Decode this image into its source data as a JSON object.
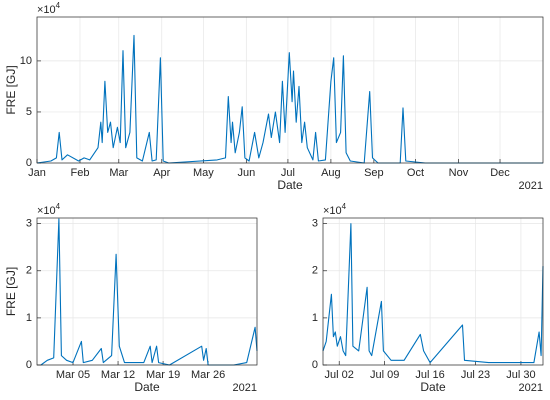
{
  "chart_data": [
    {
      "type": "line",
      "xlabel": "Date",
      "ylabel": "FRE [GJ]",
      "year_label": "2021",
      "y_scale_label": {
        "base": "×10",
        "exponent": "4"
      },
      "xlim": [
        0,
        365
      ],
      "ylim": [
        0,
        14.3
      ],
      "yticks": [
        0,
        5,
        10
      ],
      "grid": true,
      "xticks": [
        {
          "value": 0,
          "label": "Jan"
        },
        {
          "value": 31,
          "label": "Feb"
        },
        {
          "value": 59,
          "label": "Mar"
        },
        {
          "value": 90,
          "label": "Apr"
        },
        {
          "value": 120,
          "label": "May"
        },
        {
          "value": 151,
          "label": "Jun"
        },
        {
          "value": 181,
          "label": "Jul"
        },
        {
          "value": 212,
          "label": "Aug"
        },
        {
          "value": 243,
          "label": "Sep"
        },
        {
          "value": 273,
          "label": "Oct"
        },
        {
          "value": 304,
          "label": "Nov"
        },
        {
          "value": 334,
          "label": "Dec"
        }
      ],
      "x": [
        0,
        10,
        14,
        16,
        18,
        22,
        30,
        34,
        38,
        44,
        46,
        47,
        49,
        51,
        53,
        55,
        58,
        60,
        62,
        64,
        67,
        70,
        72,
        76,
        81,
        83,
        86,
        89,
        91,
        95,
        130,
        136,
        138,
        140,
        141,
        143,
        146,
        148,
        150,
        153,
        157,
        160,
        163,
        167,
        169,
        172,
        175,
        177,
        179,
        182,
        184,
        185,
        187,
        189,
        191,
        193,
        195,
        199,
        201,
        203,
        208,
        212,
        214,
        216,
        219,
        221,
        223,
        226,
        236,
        240,
        242,
        246,
        262,
        264,
        266,
        280,
        365
      ],
      "series": [
        {
          "color": "#0072bd",
          "values": [
            0,
            0.2,
            0.5,
            3,
            0.3,
            0.8,
            0.2,
            0.5,
            0.3,
            1.5,
            4,
            2,
            8,
            3,
            4,
            1.5,
            3.5,
            2,
            11,
            1.5,
            3,
            12.5,
            0.5,
            0.2,
            3,
            0.2,
            0.3,
            10.3,
            0.2,
            0,
            0.3,
            0.5,
            6.5,
            2,
            4,
            1,
            3,
            5.5,
            0.5,
            0.2,
            3,
            0.5,
            2,
            4.8,
            2.5,
            5,
            2,
            8,
            3,
            10.8,
            6,
            9,
            4,
            7.5,
            2,
            4,
            1.5,
            0.3,
            3,
            0.2,
            0.3,
            8,
            10.3,
            2,
            3,
            10.5,
            1,
            0.2,
            0,
            7,
            0.5,
            0,
            0,
            5.4,
            0.2,
            0,
            0
          ]
        }
      ]
    },
    {
      "type": "line",
      "xlabel": "Date",
      "ylabel": "FRE [GJ]",
      "year_label": "2021",
      "y_scale_label": {
        "base": "×10",
        "exponent": "4"
      },
      "xlim": [
        -0.6,
        33.6
      ],
      "ylim": [
        0,
        3.12
      ],
      "yticks": [
        0,
        1,
        2,
        3
      ],
      "grid": true,
      "xticks": [
        {
          "value": 5,
          "label": "Mar 05"
        },
        {
          "value": 12,
          "label": "Mar 12"
        },
        {
          "value": 19,
          "label": "Mar 19"
        },
        {
          "value": 26,
          "label": "Mar 26"
        }
      ],
      "x": [
        0,
        1,
        2,
        2.8,
        3.2,
        4,
        5,
        6.3,
        6.6,
        8,
        9.4,
        9.7,
        11,
        11.7,
        12.2,
        13,
        16,
        17,
        17.3,
        18,
        18.3,
        20,
        25,
        25.3,
        25.7,
        26,
        30,
        32,
        33.3,
        33.6
      ],
      "series": [
        {
          "color": "#0072bd",
          "values": [
            0,
            0.1,
            0.15,
            3.1,
            0.2,
            0.1,
            0.05,
            0.5,
            0.05,
            0.1,
            0.35,
            0.05,
            0.2,
            2.35,
            0.4,
            0.05,
            0.05,
            0.4,
            0.05,
            0.4,
            0.05,
            0,
            0.4,
            0.1,
            0.35,
            0,
            0,
            0.05,
            0.8,
            0.3
          ]
        }
      ]
    },
    {
      "type": "line",
      "xlabel": "Date",
      "year_label": "2021",
      "y_scale_label": {
        "base": "×10",
        "exponent": "4"
      },
      "xlim": [
        -0.5,
        33.4
      ],
      "ylim": [
        0,
        3.12
      ],
      "yticks": [
        0,
        1,
        2,
        3
      ],
      "grid": true,
      "xticks": [
        {
          "value": 2,
          "label": "Jul 02"
        },
        {
          "value": 9,
          "label": "Jul 09"
        },
        {
          "value": 16,
          "label": "Jul 16"
        },
        {
          "value": 23,
          "label": "Jul 23"
        },
        {
          "value": 30,
          "label": "Jul 30"
        }
      ],
      "x": [
        -0.5,
        0,
        0.8,
        1.1,
        1.4,
        1.7,
        2.2,
        2.6,
        3,
        3.8,
        4.1,
        5,
        6.3,
        6.6,
        7,
        8.5,
        8.8,
        10,
        12,
        14.5,
        15,
        16,
        21,
        21.3,
        25,
        28,
        32,
        32.8,
        33.1,
        33.4
      ],
      "series": [
        {
          "color": "#0072bd",
          "values": [
            0.3,
            0.5,
            1.5,
            0.6,
            0.7,
            0.4,
            0.6,
            0.3,
            0.2,
            3.0,
            0.4,
            0.3,
            1.65,
            0.3,
            0.2,
            1.35,
            0.3,
            0.1,
            0.1,
            0.65,
            0.3,
            0.05,
            0.85,
            0.1,
            0.05,
            0.05,
            0.05,
            0.7,
            0.2,
            2.1
          ]
        }
      ]
    }
  ]
}
